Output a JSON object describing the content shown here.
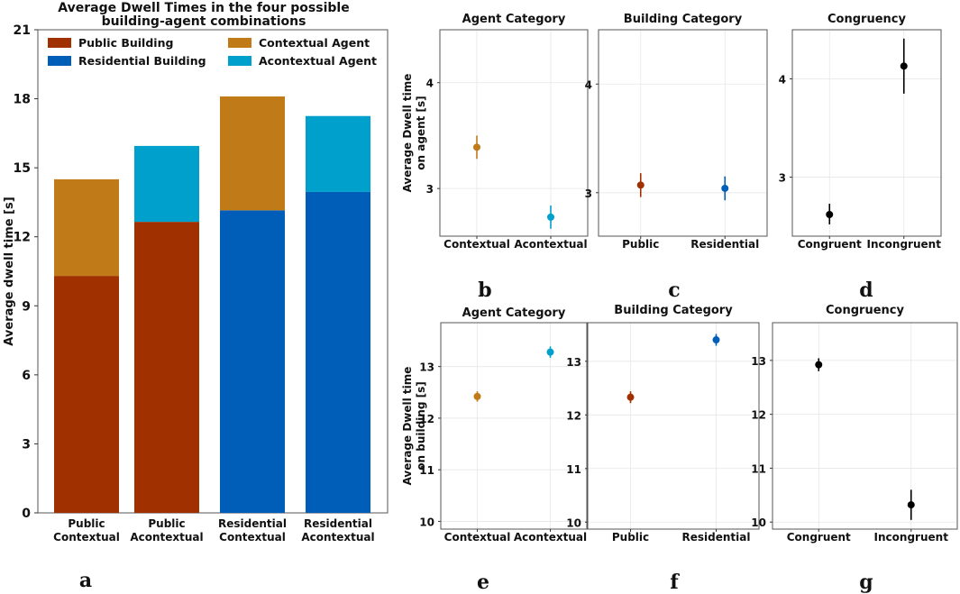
{
  "chart_data": [
    {
      "id": "a",
      "type": "bar",
      "panel_label": "a",
      "title": "Average Dwell Times in the four possible",
      "title2": "building-agent combinations",
      "ylabel": "Average dwell time [s]",
      "ylim": [
        0,
        21
      ],
      "yticks": [
        0,
        3,
        6,
        9,
        12,
        15,
        18,
        21
      ],
      "categories": [
        [
          "Public",
          "Contextual"
        ],
        [
          "Public",
          "Acontextual"
        ],
        [
          "Residential",
          "Contextual"
        ],
        [
          "Residential",
          "Acontextual"
        ]
      ],
      "stacks": [
        {
          "building": 10.3,
          "agent": 4.2,
          "building_type": "public",
          "agent_type": "contextual"
        },
        {
          "building": 12.65,
          "agent": 3.3,
          "building_type": "public",
          "agent_type": "acontextual"
        },
        {
          "building": 13.15,
          "agent": 4.95,
          "building_type": "residential",
          "agent_type": "contextual"
        },
        {
          "building": 13.95,
          "agent": 3.3,
          "building_type": "residential",
          "agent_type": "acontextual"
        }
      ],
      "legend": [
        {
          "label": "Public Building",
          "key": "public"
        },
        {
          "label": "Contextual Agent",
          "key": "contextual"
        },
        {
          "label": "Residential Building",
          "key": "residential"
        },
        {
          "label": "Acontextual Agent",
          "key": "acontextual"
        }
      ],
      "legend_position": "top"
    },
    {
      "id": "b",
      "type": "scatter",
      "panel_label": "b",
      "title": "Agent Category",
      "ylabel_lines": [
        "Average Dwell time",
        "on agent [s]"
      ],
      "ylim": [
        2.55,
        4.5
      ],
      "yticks": [
        3,
        4
      ],
      "xlim": [
        -0.5,
        1.5
      ],
      "points": [
        {
          "x": 0,
          "label": "Contextual",
          "y": 3.39,
          "lo": 3.28,
          "hi": 3.5,
          "key": "contextual"
        },
        {
          "x": 1,
          "label": "Acontextual",
          "y": 2.73,
          "lo": 2.62,
          "hi": 2.84,
          "key": "acontextual"
        }
      ]
    },
    {
      "id": "c",
      "type": "scatter",
      "panel_label": "c",
      "title": "Building Category",
      "ylim": [
        2.6,
        4.5
      ],
      "yticks": [
        3,
        4
      ],
      "xlim": [
        -0.5,
        1.5
      ],
      "points": [
        {
          "x": 0,
          "label": "Public",
          "y": 3.07,
          "lo": 2.96,
          "hi": 3.18,
          "key": "public"
        },
        {
          "x": 1,
          "label": "Residential",
          "y": 3.04,
          "lo": 2.93,
          "hi": 3.15,
          "key": "residential"
        }
      ]
    },
    {
      "id": "d",
      "type": "scatter",
      "panel_label": "d",
      "title": "Congruency",
      "ylim": [
        2.4,
        4.5
      ],
      "yticks": [
        3,
        4
      ],
      "xlim": [
        -0.5,
        1.5
      ],
      "points": [
        {
          "x": 0,
          "label": "Congruent",
          "y": 2.62,
          "lo": 2.52,
          "hi": 2.73,
          "key": "black"
        },
        {
          "x": 1,
          "label": "Incongruent",
          "y": 4.13,
          "lo": 3.85,
          "hi": 4.41,
          "key": "black"
        }
      ]
    },
    {
      "id": "e",
      "type": "scatter",
      "panel_label": "e",
      "title": "Agent Category",
      "ylabel_lines": [
        "Average Dwell time",
        "on building [s]"
      ],
      "ylim": [
        9.85,
        13.85
      ],
      "yticks": [
        10,
        11,
        12,
        13
      ],
      "xlim": [
        -0.5,
        1.5
      ],
      "points": [
        {
          "x": 0,
          "label": "Contextual",
          "y": 12.42,
          "lo": 12.32,
          "hi": 12.52,
          "key": "contextual"
        },
        {
          "x": 1,
          "label": "Acontextual",
          "y": 13.28,
          "lo": 13.17,
          "hi": 13.39,
          "key": "acontextual"
        }
      ]
    },
    {
      "id": "f",
      "type": "scatter",
      "panel_label": "f",
      "title": "Building Category",
      "ylim": [
        9.87,
        13.72
      ],
      "yticks": [
        10,
        11,
        12,
        13
      ],
      "xlim": [
        -0.5,
        1.5
      ],
      "points": [
        {
          "x": 0,
          "label": "Public",
          "y": 12.33,
          "lo": 12.22,
          "hi": 12.44,
          "key": "public"
        },
        {
          "x": 1,
          "label": "Residential",
          "y": 13.4,
          "lo": 13.29,
          "hi": 13.51,
          "key": "residential"
        }
      ]
    },
    {
      "id": "g",
      "type": "scatter",
      "panel_label": "g",
      "title": "Congruency",
      "ylim": [
        9.87,
        13.7
      ],
      "yticks": [
        10,
        11,
        12,
        13
      ],
      "xlim": [
        -0.5,
        1.5
      ],
      "points": [
        {
          "x": 0,
          "label": "Congruent",
          "y": 12.92,
          "lo": 12.8,
          "hi": 13.04,
          "key": "black"
        },
        {
          "x": 1,
          "label": "Incongruent",
          "y": 10.32,
          "lo": 10.04,
          "hi": 10.6,
          "key": "black"
        }
      ]
    }
  ],
  "colors": {
    "public": "#A03000",
    "residential": "#005EB8",
    "contextual": "#C07A18",
    "acontextual": "#00A0CC",
    "black": "#000000"
  }
}
